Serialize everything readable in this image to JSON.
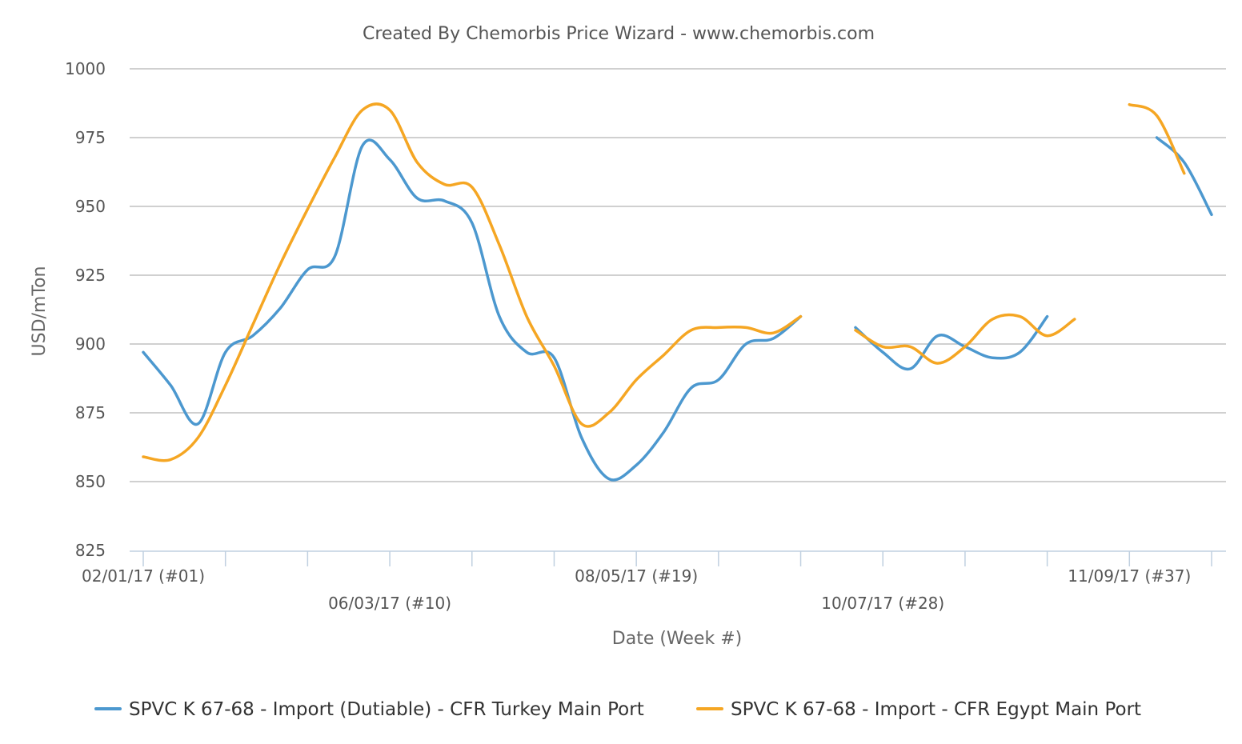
{
  "chart_data": {
    "type": "line",
    "title": "Created By Chemorbis Price Wizard - www.chemorbis.com",
    "xlabel": "Date (Week #)",
    "ylabel": "USD/mTon",
    "ylim": [
      825,
      1000
    ],
    "yticks": [
      825,
      850,
      875,
      900,
      925,
      950,
      975,
      1000
    ],
    "week_range": [
      1,
      40
    ],
    "xtick_labels": [
      {
        "week": 1,
        "label": "02/01/17 (#01)",
        "row": 0
      },
      {
        "week": 10,
        "label": "06/03/17 (#10)",
        "row": 1
      },
      {
        "week": 19,
        "label": "08/05/17 (#19)",
        "row": 0
      },
      {
        "week": 28,
        "label": "10/07/17 (#28)",
        "row": 1
      },
      {
        "week": 37,
        "label": "11/09/17 (#37)",
        "row": 0
      }
    ],
    "grid": true,
    "legend_position": "bottom",
    "series": [
      {
        "name": "SPVC K 67-68 - Import (Dutiable) - CFR Turkey Main Port",
        "color": "#4c98cf",
        "segments": [
          [
            [
              1,
              897
            ],
            [
              2,
              885
            ],
            [
              3,
              871
            ],
            [
              4,
              897
            ],
            [
              5,
              903
            ],
            [
              6,
              913
            ],
            [
              7,
              927
            ],
            [
              8,
              932
            ],
            [
              9,
              972
            ],
            [
              10,
              967
            ],
            [
              11,
              953
            ],
            [
              12,
              952
            ],
            [
              13,
              944
            ],
            [
              14,
              910
            ],
            [
              15,
              897
            ],
            [
              16,
              895
            ],
            [
              17,
              866
            ],
            [
              18,
              851
            ],
            [
              19,
              856
            ],
            [
              20,
              868
            ],
            [
              21,
              884
            ],
            [
              22,
              887
            ],
            [
              23,
              900
            ],
            [
              24,
              902
            ],
            [
              25,
              910
            ]
          ],
          [
            [
              27,
              906
            ],
            [
              28,
              897
            ],
            [
              29,
              891
            ],
            [
              30,
              903
            ],
            [
              31,
              899
            ],
            [
              32,
              895
            ],
            [
              33,
              897
            ],
            [
              34,
              910
            ]
          ],
          [
            [
              38,
              975
            ],
            [
              39,
              966
            ],
            [
              40,
              947
            ]
          ]
        ]
      },
      {
        "name": "SPVC K 67-68 - Import - CFR Egypt Main Port",
        "color": "#f5a623",
        "segments": [
          [
            [
              1,
              859
            ],
            [
              2,
              858
            ],
            [
              3,
              866
            ],
            [
              4,
              885
            ],
            [
              5,
              907
            ],
            [
              6,
              929
            ],
            [
              7,
              949
            ],
            [
              8,
              968
            ],
            [
              9,
              985
            ],
            [
              10,
              985
            ],
            [
              11,
              966
            ],
            [
              12,
              958
            ],
            [
              13,
              957
            ],
            [
              14,
              936
            ],
            [
              15,
              910
            ],
            [
              16,
              892
            ],
            [
              17,
              871
            ],
            [
              18,
              875
            ],
            [
              19,
              887
            ],
            [
              20,
              896
            ],
            [
              21,
              905
            ],
            [
              22,
              906
            ],
            [
              23,
              906
            ],
            [
              24,
              904
            ],
            [
              25,
              910
            ]
          ],
          [
            [
              27,
              905
            ],
            [
              28,
              899
            ],
            [
              29,
              899
            ],
            [
              30,
              893
            ],
            [
              31,
              899
            ],
            [
              32,
              909
            ],
            [
              33,
              910
            ],
            [
              34,
              903
            ],
            [
              35,
              909
            ]
          ],
          [
            [
              37,
              987
            ],
            [
              38,
              983
            ],
            [
              39,
              962
            ]
          ]
        ]
      }
    ]
  }
}
